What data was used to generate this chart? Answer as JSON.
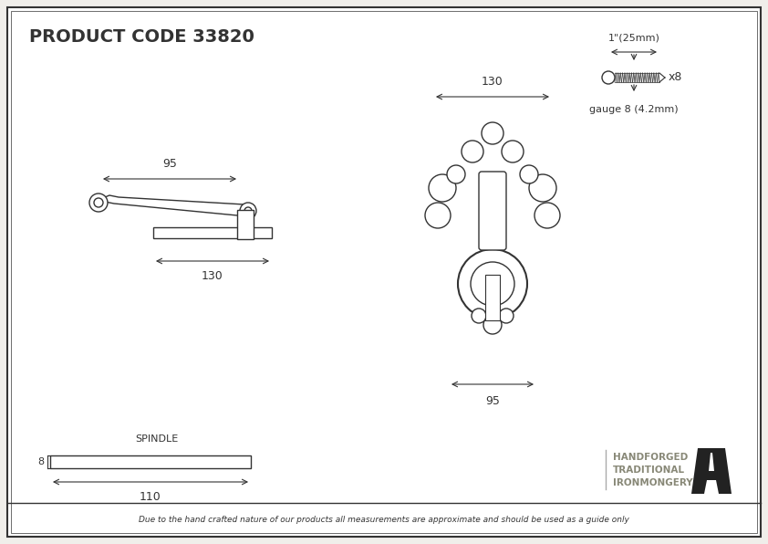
{
  "title": "PRODUCT CODE 33820",
  "bg_color": "#f0eeea",
  "border_color": "#333333",
  "line_color": "#333333",
  "text_color": "#333333",
  "footer_text": "Due to the hand crafted nature of our products all measurements are approximate and should be used as a guide only",
  "brand_line1": "HANDFORGED",
  "brand_line2": "TRADITIONAL",
  "brand_line3": "IRONMONGERY",
  "screw_label": "1\"(25mm)",
  "screw_x8": "x8",
  "screw_gauge": "gauge 8 (4.2mm)",
  "dim_95_handle": "95",
  "dim_130_base": "130",
  "dim_130_ring": "130",
  "dim_95_ring": "95",
  "spindle_label": "SPINDLE",
  "spindle_dim": "110",
  "spindle_height": "8"
}
